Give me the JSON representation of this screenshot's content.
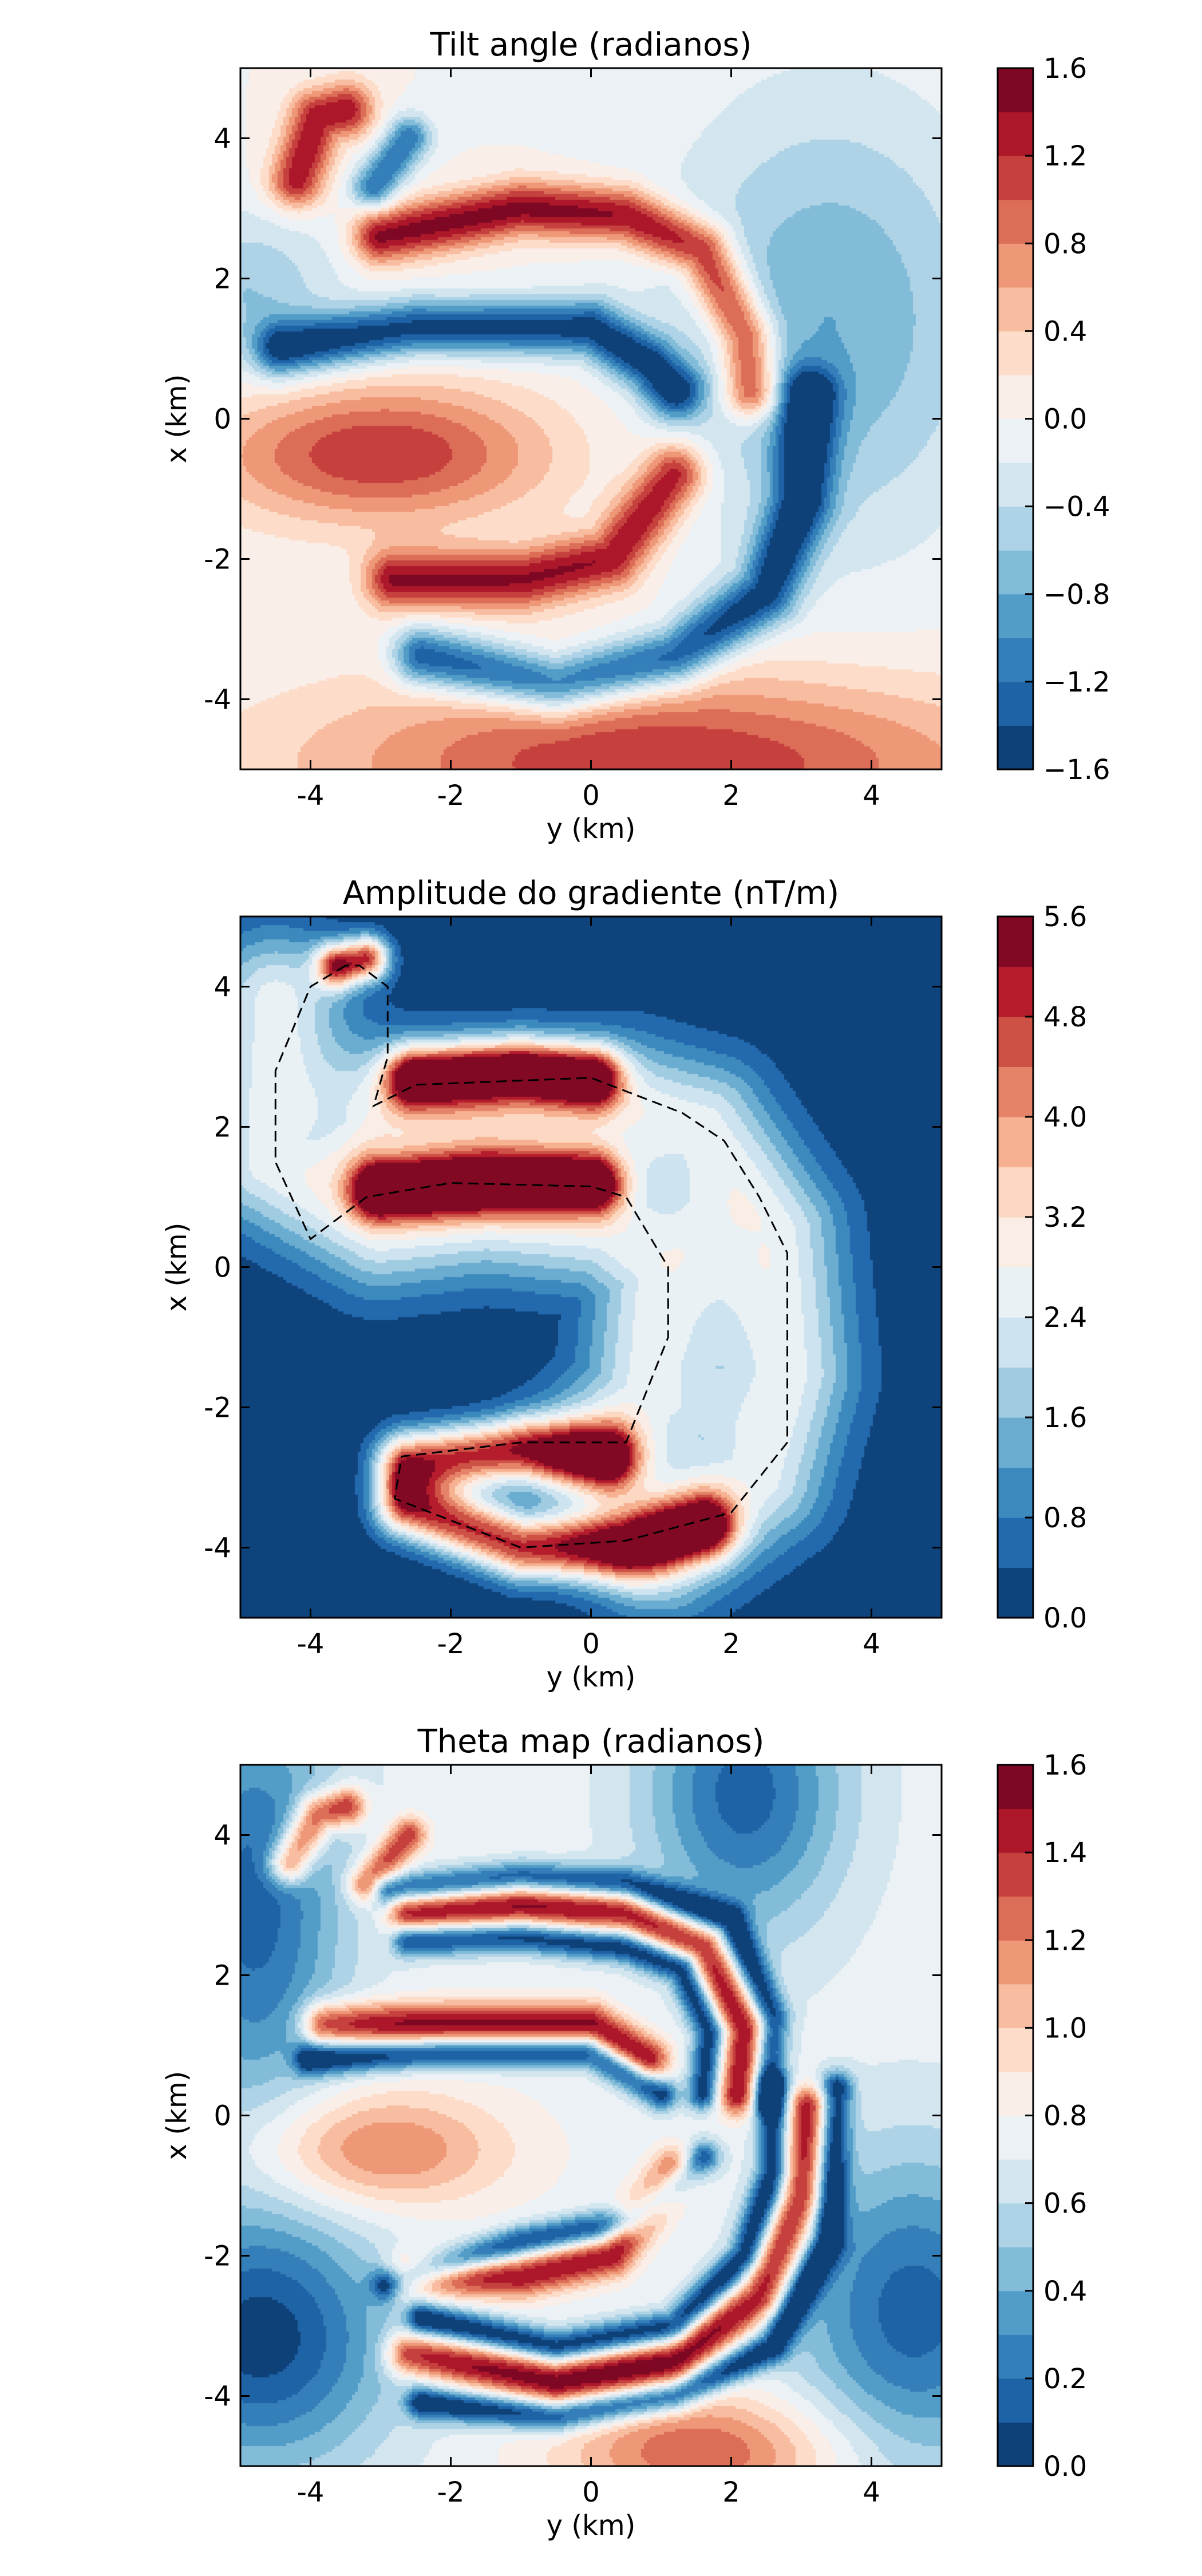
{
  "chart_data": [
    {
      "type": "contourf",
      "title": "Tilt angle (radianos)",
      "xlabel": "y (km)",
      "ylabel": "x (km)",
      "xlim": [
        -5,
        5
      ],
      "ylim": [
        -5,
        5
      ],
      "xticks": [
        -4,
        -2,
        0,
        2,
        4
      ],
      "yticks": [
        -4,
        -2,
        0,
        2,
        4
      ],
      "xtick_labels": [
        "-4",
        "-2",
        "0",
        "2",
        "4"
      ],
      "ytick_labels": [
        "-4",
        "-2",
        "0",
        "2",
        "4"
      ],
      "colormap": "RdBu_r",
      "colorbar": {
        "vmin": -1.6,
        "vmax": 1.6,
        "levels": 16,
        "ticks": [
          -1.6,
          -1.2,
          -0.8,
          -0.4,
          0.0,
          0.4,
          0.8,
          1.2,
          1.6
        ],
        "tick_labels": [
          "−1.6",
          "−1.2",
          "−0.8",
          "−0.4",
          "0.0",
          "0.4",
          "0.8",
          "1.2",
          "1.6"
        ]
      },
      "features": [
        {
          "shape": "band",
          "sign": 1,
          "peak": 1.5,
          "width": 0.28,
          "points": [
            [
              -3.0,
              2.6
            ],
            [
              -1.0,
              3.0
            ],
            [
              0.5,
              2.9
            ],
            [
              1.6,
              2.4
            ],
            [
              2.2,
              1.2
            ],
            [
              2.3,
              0.4
            ]
          ]
        },
        {
          "shape": "band",
          "sign": -1,
          "peak": 1.5,
          "width": 0.28,
          "points": [
            [
              -4.4,
              1.0
            ],
            [
              -2.5,
              1.3
            ],
            [
              0.0,
              1.3
            ],
            [
              0.8,
              0.8
            ],
            [
              1.2,
              0.4
            ]
          ]
        },
        {
          "shape": "band",
          "sign": 1,
          "peak": 1.4,
          "width": 0.3,
          "points": [
            [
              -2.8,
              -2.3
            ],
            [
              -1.0,
              -2.3
            ],
            [
              0.3,
              -2.0
            ],
            [
              1.2,
              -0.8
            ]
          ]
        },
        {
          "shape": "band",
          "sign": -1,
          "peak": 1.5,
          "width": 0.3,
          "points": [
            [
              -2.4,
              -3.4
            ],
            [
              -0.5,
              -3.8
            ],
            [
              1.2,
              -3.4
            ],
            [
              2.5,
              -2.5
            ],
            [
              3.0,
              -1.2
            ],
            [
              3.1,
              0.3
            ]
          ]
        },
        {
          "shape": "band",
          "sign": 1,
          "peak": 1.4,
          "width": 0.28,
          "points": [
            [
              -4.2,
              3.4
            ],
            [
              -3.9,
              4.3
            ],
            [
              -3.5,
              4.4
            ]
          ]
        },
        {
          "shape": "band",
          "sign": -1,
          "peak": 1.2,
          "width": 0.22,
          "points": [
            [
              -3.1,
              3.3
            ],
            [
              -2.6,
              4.0
            ]
          ]
        },
        {
          "shape": "blob",
          "sign": 1,
          "peak": 1.2,
          "center": [
            -3.0,
            -0.5
          ],
          "radius": [
            1.7,
            0.7
          ]
        },
        {
          "shape": "blob",
          "sign": 1,
          "peak": 1.2,
          "center": [
            1.0,
            -4.9
          ],
          "radius": [
            3.5,
            0.9
          ]
        },
        {
          "shape": "blob",
          "sign": -1,
          "peak": 0.8,
          "center": [
            3.4,
            1.4
          ],
          "radius": [
            1.6,
            2.2
          ]
        },
        {
          "shape": "blob",
          "sign": -1,
          "peak": 0.6,
          "center": [
            -4.9,
            1.8
          ],
          "radius": [
            0.9,
            0.8
          ]
        }
      ]
    },
    {
      "type": "contourf",
      "title": "Amplitude do gradiente (nT/m)",
      "xlabel": "y (km)",
      "ylabel": "x (km)",
      "xlim": [
        -5,
        5
      ],
      "ylim": [
        -5,
        5
      ],
      "xticks": [
        -4,
        -2,
        0,
        2,
        4
      ],
      "yticks": [
        -4,
        -2,
        0,
        2,
        4
      ],
      "xtick_labels": [
        "-4",
        "-2",
        "0",
        "2",
        "4"
      ],
      "ytick_labels": [
        "-4",
        "-2",
        "0",
        "2",
        "4"
      ],
      "colormap": "RdBu_r",
      "colorbar": {
        "vmin": 0.0,
        "vmax": 5.6,
        "levels": 14,
        "ticks": [
          0.0,
          0.8,
          1.6,
          2.4,
          3.2,
          4.0,
          4.8,
          5.6
        ],
        "tick_labels": [
          "0.0",
          "0.8",
          "1.6",
          "2.4",
          "3.2",
          "4.0",
          "4.8",
          "5.6"
        ]
      },
      "features": [
        {
          "shape": "band",
          "sign": 1,
          "peak": 5.2,
          "width": 0.3,
          "points": [
            [
              -2.5,
              2.7
            ],
            [
              -1.0,
              2.8
            ],
            [
              0.0,
              2.7
            ]
          ]
        },
        {
          "shape": "band",
          "sign": 1,
          "peak": 5.0,
          "width": 0.3,
          "points": [
            [
              -3.0,
              1.1
            ],
            [
              -1.5,
              1.2
            ],
            [
              0.0,
              1.2
            ]
          ]
        },
        {
          "shape": "band",
          "sign": 1,
          "peak": 4.8,
          "width": 0.32,
          "points": [
            [
              -2.6,
              -2.8
            ],
            [
              -1.0,
              -2.6
            ],
            [
              0.2,
              -2.7
            ]
          ]
        },
        {
          "shape": "band",
          "sign": 1,
          "peak": 4.8,
          "width": 0.32,
          "points": [
            [
              -2.6,
              -3.4
            ],
            [
              -1.0,
              -4.0
            ],
            [
              0.5,
              -4.0
            ],
            [
              1.6,
              -3.7
            ]
          ]
        },
        {
          "shape": "band",
          "sign": 1,
          "peak": 4.6,
          "width": 0.22,
          "points": [
            [
              -3.6,
              4.3
            ],
            [
              -3.2,
              4.4
            ]
          ]
        },
        {
          "shape": "band",
          "sign": 1,
          "peak": 2.6,
          "width": 0.7,
          "points": [
            [
              -4.5,
              3.8
            ],
            [
              -4.6,
              1.5
            ],
            [
              -3.0,
              0.6
            ],
            [
              -1.5,
              0.8
            ],
            [
              0.2,
              0.6
            ],
            [
              1.0,
              0.0
            ],
            [
              0.8,
              -1.8
            ],
            [
              0.2,
              -2.5
            ]
          ]
        },
        {
          "shape": "band",
          "sign": 1,
          "peak": 2.6,
          "width": 0.7,
          "points": [
            [
              -2.8,
              2.2
            ],
            [
              0.5,
              2.3
            ],
            [
              1.6,
              2.0
            ],
            [
              2.6,
              0.5
            ],
            [
              2.8,
              -1.5
            ],
            [
              2.4,
              -3.0
            ],
            [
              1.0,
              -4.0
            ]
          ]
        }
      ],
      "dashed_outline": [
        [
          [
            -3.5,
            4.3
          ],
          [
            -4.0,
            4.0
          ],
          [
            -4.5,
            2.8
          ],
          [
            -4.5,
            1.5
          ],
          [
            -4.0,
            0.4
          ],
          [
            -3.2,
            1.0
          ],
          [
            -2.0,
            1.2
          ],
          [
            0.0,
            1.15
          ],
          [
            0.5,
            1.0
          ],
          [
            1.1,
            0.0
          ],
          [
            1.1,
            -1.0
          ],
          [
            0.5,
            -2.5
          ],
          [
            -1.0,
            -2.5
          ],
          [
            -2.7,
            -2.7
          ],
          [
            -2.8,
            -3.3
          ],
          [
            -1.0,
            -4.0
          ],
          [
            0.5,
            -3.9
          ],
          [
            2.0,
            -3.5
          ],
          [
            2.8,
            -2.5
          ],
          [
            2.8,
            0.2
          ],
          [
            2.4,
            1.0
          ],
          [
            1.9,
            1.8
          ],
          [
            1.3,
            2.2
          ],
          [
            0.0,
            2.7
          ],
          [
            -2.5,
            2.6
          ],
          [
            -3.1,
            2.3
          ],
          [
            -2.9,
            3.0
          ],
          [
            -2.9,
            4.0
          ],
          [
            -3.3,
            4.3
          ],
          [
            -3.5,
            4.3
          ]
        ]
      ]
    },
    {
      "type": "contourf",
      "title": "Theta map (radianos)",
      "xlabel": "y (km)",
      "ylabel": "x (km)",
      "xlim": [
        -5,
        5
      ],
      "ylim": [
        -5,
        5
      ],
      "xticks": [
        -4,
        -2,
        0,
        2,
        4
      ],
      "yticks": [
        -4,
        -2,
        0,
        2,
        4
      ],
      "xtick_labels": [
        "-4",
        "-2",
        "0",
        "2",
        "4"
      ],
      "ytick_labels": [
        "-4",
        "-2",
        "0",
        "2",
        "4"
      ],
      "colormap": "RdBu_r",
      "colorbar": {
        "vmin": 0.0,
        "vmax": 1.6,
        "levels": 16,
        "ticks": [
          0.0,
          0.2,
          0.4,
          0.6,
          0.8,
          1.0,
          1.2,
          1.4,
          1.6
        ],
        "tick_labels": [
          "0.0",
          "0.2",
          "0.4",
          "0.6",
          "0.8",
          "1.0",
          "1.2",
          "1.4",
          "1.6"
        ]
      },
      "background": 0.75,
      "features": [
        {
          "shape": "band",
          "sign": 1,
          "peak": 0.8,
          "width": 0.22,
          "points": [
            [
              -2.6,
              2.9
            ],
            [
              -1.0,
              3.0
            ],
            [
              0.5,
              2.9
            ],
            [
              1.6,
              2.4
            ],
            [
              2.2,
              1.2
            ],
            [
              2.1,
              0.3
            ]
          ]
        },
        {
          "shape": "band",
          "sign": 1,
          "peak": 0.8,
          "width": 0.22,
          "points": [
            [
              -3.8,
              1.3
            ],
            [
              -2.0,
              1.3
            ],
            [
              0.0,
              1.3
            ],
            [
              0.8,
              0.8
            ]
          ]
        },
        {
          "shape": "band",
          "sign": 1,
          "peak": 0.75,
          "width": 0.22,
          "points": [
            [
              -2.6,
              -2.3
            ],
            [
              -1.0,
              -2.3
            ],
            [
              0.3,
              -2.0
            ],
            [
              1.2,
              -0.8
            ]
          ]
        },
        {
          "shape": "band",
          "sign": 1,
          "peak": 0.8,
          "width": 0.22,
          "points": [
            [
              -2.6,
              -3.4
            ],
            [
              -0.5,
              -3.8
            ],
            [
              1.2,
              -3.5
            ],
            [
              2.4,
              -2.6
            ],
            [
              3.0,
              -1.2
            ],
            [
              3.1,
              0.1
            ]
          ]
        },
        {
          "shape": "band",
          "sign": 1,
          "peak": 0.8,
          "width": 0.2,
          "points": [
            [
              -4.3,
              3.6
            ],
            [
              -3.9,
              4.3
            ],
            [
              -3.5,
              4.4
            ]
          ]
        },
        {
          "shape": "band",
          "sign": 1,
          "peak": 0.65,
          "width": 0.18,
          "points": [
            [
              -3.2,
              3.3
            ],
            [
              -2.6,
              4.0
            ]
          ]
        },
        {
          "shape": "band",
          "sign": -1,
          "peak": 0.75,
          "width": 0.16,
          "points": [
            [
              -2.6,
              2.5
            ],
            [
              -1.0,
              2.55
            ],
            [
              0.5,
              2.4
            ],
            [
              1.3,
              2.1
            ],
            [
              1.7,
              1.2
            ],
            [
              1.6,
              0.3
            ]
          ]
        },
        {
          "shape": "band",
          "sign": -1,
          "peak": 0.75,
          "width": 0.16,
          "points": [
            [
              -4.0,
              0.8
            ],
            [
              -2.0,
              0.9
            ],
            [
              0.0,
              0.9
            ],
            [
              1.0,
              0.3
            ]
          ]
        },
        {
          "shape": "band",
          "sign": -1,
          "peak": 0.75,
          "width": 0.16,
          "points": [
            [
              -2.4,
              -2.9
            ],
            [
              -0.5,
              -3.3
            ],
            [
              1.2,
              -3.0
            ],
            [
              2.2,
              -2.0
            ],
            [
              2.6,
              -0.8
            ],
            [
              2.6,
              0.4
            ]
          ]
        },
        {
          "shape": "band",
          "sign": -1,
          "peak": 0.75,
          "width": 0.16,
          "points": [
            [
              -2.4,
              -4.1
            ],
            [
              -0.5,
              -4.3
            ],
            [
              1.2,
              -4.0
            ],
            [
              2.6,
              -3.3
            ],
            [
              3.4,
              -1.8
            ],
            [
              3.5,
              0.4
            ]
          ]
        },
        {
          "shape": "band",
          "sign": -1,
          "peak": 0.7,
          "width": 0.16,
          "points": [
            [
              -2.9,
              -2.4
            ],
            [
              -1.0,
              -1.8
            ],
            [
              0.6,
              -1.5
            ],
            [
              1.6,
              -0.6
            ]
          ]
        },
        {
          "shape": "band",
          "sign": -1,
          "peak": 0.7,
          "width": 0.16,
          "points": [
            [
              -2.9,
              3.2
            ],
            [
              -1.0,
              3.4
            ],
            [
              0.5,
              3.3
            ],
            [
              2.0,
              2.8
            ],
            [
              2.6,
              1.4
            ],
            [
              2.5,
              0.2
            ]
          ]
        },
        {
          "shape": "blob",
          "sign": -1,
          "peak": 0.6,
          "center": [
            -4.8,
            3.0
          ],
          "radius": [
            0.9,
            2.2
          ]
        },
        {
          "shape": "blob",
          "sign": -1,
          "peak": 0.7,
          "center": [
            -4.7,
            -3.2
          ],
          "radius": [
            1.3,
            1.3
          ]
        },
        {
          "shape": "blob",
          "sign": -1,
          "peak": 0.6,
          "center": [
            4.6,
            -2.8
          ],
          "radius": [
            1.2,
            1.6
          ]
        },
        {
          "shape": "blob",
          "sign": -1,
          "peak": 0.6,
          "center": [
            2.2,
            4.6
          ],
          "radius": [
            1.0,
            1.4
          ]
        },
        {
          "shape": "blob",
          "sign": 1,
          "peak": 0.5,
          "center": [
            -3.1,
            -0.5
          ],
          "radius": [
            1.3,
            0.6
          ]
        },
        {
          "shape": "blob",
          "sign": 1,
          "peak": 0.55,
          "center": [
            1.6,
            -4.8
          ],
          "radius": [
            1.4,
            0.6
          ]
        }
      ]
    }
  ]
}
